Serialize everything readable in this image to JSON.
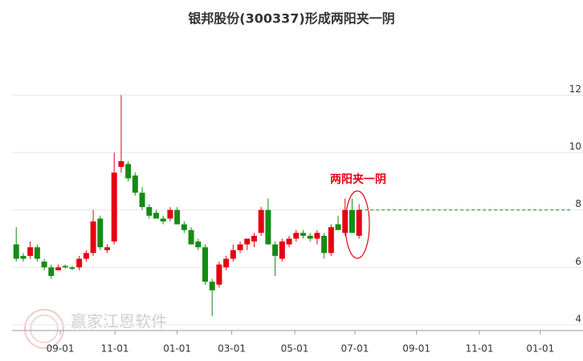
{
  "chart_data": {
    "type": "candlestick",
    "title": "银邦股份(300337)形成两阳夹一阴",
    "annotation": "两阳夹一阴",
    "watermark": "赢家江恩软件",
    "x": [
      0,
      1,
      2,
      3,
      4,
      5,
      6,
      7,
      8,
      9,
      10,
      11,
      12,
      13,
      14,
      15,
      16,
      17,
      18,
      19,
      20,
      21,
      22,
      23,
      24,
      25,
      26,
      27,
      28,
      29,
      30,
      31,
      32,
      33,
      34,
      35,
      36,
      37,
      38,
      39,
      40,
      41,
      42,
      43,
      44,
      45,
      46,
      47,
      48,
      49
    ],
    "open": [
      6.8,
      6.4,
      6.4,
      6.7,
      6.2,
      6.0,
      5.9,
      6.05,
      6.0,
      6.0,
      6.3,
      6.5,
      7.7,
      6.6,
      6.9,
      9.5,
      9.6,
      9.2,
      8.6,
      8.1,
      7.9,
      7.7,
      7.7,
      8.0,
      7.5,
      7.3,
      6.9,
      6.7,
      5.5,
      5.4,
      6.0,
      6.3,
      6.6,
      6.8,
      6.9,
      7.2,
      8.0,
      6.8,
      6.3,
      6.8,
      7.0,
      7.2,
      7.1,
      7.0,
      7.1,
      6.5,
      7.5,
      7.2,
      8.0,
      7.1
    ],
    "high": [
      7.4,
      6.5,
      6.9,
      6.8,
      6.3,
      6.1,
      6.1,
      6.1,
      6.05,
      6.4,
      6.6,
      8.0,
      7.8,
      6.8,
      10.0,
      12.0,
      9.7,
      9.3,
      8.8,
      8.2,
      8.0,
      7.8,
      8.1,
      8.1,
      7.6,
      7.4,
      7.0,
      6.8,
      5.6,
      6.2,
      6.4,
      6.8,
      6.9,
      7.0,
      7.2,
      8.1,
      8.4,
      6.9,
      7.0,
      7.1,
      7.3,
      7.3,
      7.2,
      7.3,
      7.2,
      7.5,
      7.8,
      8.4,
      8.4,
      8.2
    ],
    "low": [
      6.2,
      6.2,
      6.3,
      6.2,
      5.9,
      5.6,
      5.9,
      5.95,
      5.9,
      5.9,
      6.2,
      6.4,
      6.6,
      6.5,
      6.8,
      9.3,
      9.0,
      8.5,
      8.0,
      7.7,
      7.7,
      7.5,
      7.6,
      7.5,
      7.2,
      6.8,
      6.6,
      5.4,
      4.3,
      5.3,
      5.9,
      6.2,
      6.5,
      6.6,
      6.7,
      7.1,
      6.8,
      5.7,
      6.2,
      6.7,
      6.9,
      7.0,
      6.9,
      6.8,
      6.3,
      6.4,
      7.3,
      7.1,
      7.2,
      7.0
    ],
    "close": [
      6.3,
      6.3,
      6.7,
      6.3,
      6.0,
      5.7,
      6.0,
      6.0,
      5.95,
      6.3,
      6.5,
      7.6,
      6.7,
      6.7,
      9.3,
      9.7,
      9.1,
      8.6,
      8.1,
      7.8,
      7.7,
      7.6,
      8.0,
      7.5,
      7.3,
      6.8,
      6.7,
      5.5,
      5.2,
      6.1,
      6.3,
      6.6,
      6.8,
      7.0,
      7.1,
      8.0,
      6.8,
      6.4,
      6.9,
      7.0,
      7.2,
      7.1,
      7.0,
      7.2,
      6.5,
      7.4,
      7.3,
      8.0,
      7.2,
      8.0
    ],
    "up_color": "#e60012",
    "down_color": "#148c14",
    "xlim": [
      -0.6,
      81
    ],
    "xticks": [
      {
        "value": 6.3,
        "label": "09-01"
      },
      {
        "value": 14.1,
        "label": "11-01"
      },
      {
        "value": 23,
        "label": "01-01"
      },
      {
        "value": 30.8,
        "label": "03-01"
      },
      {
        "value": 39.8,
        "label": "05-01"
      },
      {
        "value": 48.4,
        "label": "07-01"
      },
      {
        "value": 57.2,
        "label": "09-01"
      },
      {
        "value": 66.2,
        "label": "11-01"
      },
      {
        "value": 74.9,
        "label": "01-01"
      }
    ],
    "ylim": [
      3.8,
      14
    ],
    "yticks": [
      4,
      6,
      8,
      10,
      12
    ],
    "grid": true
  }
}
